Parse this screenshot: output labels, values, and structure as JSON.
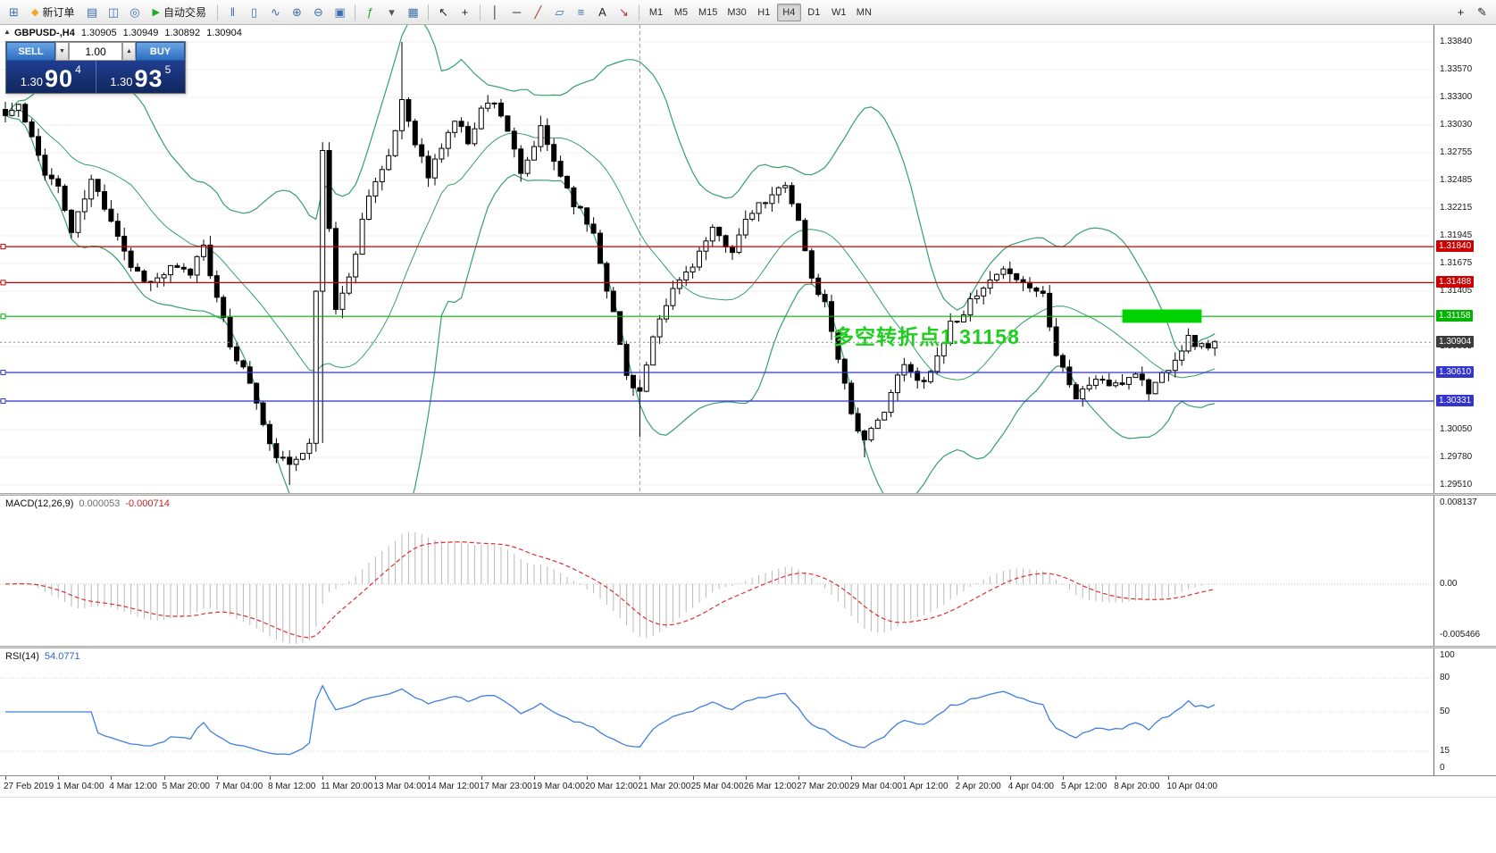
{
  "toolbar": {
    "items": [
      {
        "type": "icon",
        "name": "new-chart",
        "glyph": "⊞",
        "color": "#3f6fae"
      },
      {
        "type": "labeled",
        "name": "new-order",
        "glyph": "◆",
        "glyph_color": "#f0a821",
        "label": "新订单"
      },
      {
        "type": "icon",
        "name": "market-watch",
        "glyph": "▤",
        "color": "#3f6fae"
      },
      {
        "type": "icon",
        "name": "data-window",
        "glyph": "◫",
        "color": "#3f6fae"
      },
      {
        "type": "icon",
        "name": "navigator",
        "glyph": "◎",
        "color": "#3f6fae"
      },
      {
        "type": "labeled",
        "name": "auto-trading",
        "glyph": "▶",
        "glyph_color": "#1faa1f",
        "label": "自动交易"
      },
      {
        "type": "sep"
      },
      {
        "type": "icon",
        "name": "bar-chart-mode",
        "glyph": "‖",
        "color": "#3f6fae"
      },
      {
        "type": "icon",
        "name": "candle-chart-mode",
        "glyph": "▯",
        "color": "#3f6fae"
      },
      {
        "type": "icon",
        "name": "line-chart-mode",
        "glyph": "∿",
        "color": "#3f6fae"
      },
      {
        "type": "icon",
        "name": "zoom-in",
        "glyph": "⊕",
        "color": "#3f6fae"
      },
      {
        "type": "icon",
        "name": "zoom-out",
        "glyph": "⊖",
        "color": "#3f6fae"
      },
      {
        "type": "icon",
        "name": "auto-scroll",
        "glyph": "▣",
        "color": "#3f6fae"
      },
      {
        "type": "sep"
      },
      {
        "type": "icon",
        "name": "indicators",
        "glyph": "ƒ",
        "color": "#1faa1f"
      },
      {
        "type": "icon",
        "name": "indicators-dropdown",
        "glyph": "▾",
        "color": "#555555"
      },
      {
        "type": "icon",
        "name": "periods-dropdown",
        "glyph": "▦",
        "color": "#3f6fae"
      },
      {
        "type": "sep"
      },
      {
        "type": "icon",
        "name": "cursor",
        "glyph": "↖",
        "color": "#222222"
      },
      {
        "type": "icon",
        "name": "crosshair",
        "glyph": "+",
        "color": "#222222"
      },
      {
        "type": "sep"
      },
      {
        "type": "icon",
        "name": "vertical-line-tool",
        "glyph": "│",
        "color": "#222222"
      },
      {
        "type": "icon",
        "name": "horizontal-line-tool",
        "glyph": "─",
        "color": "#222222"
      },
      {
        "type": "icon",
        "name": "trendline-tool",
        "glyph": "╱",
        "color": "#b03030"
      },
      {
        "type": "icon",
        "name": "channel-tool",
        "glyph": "▱",
        "color": "#3f6fae"
      },
      {
        "type": "icon",
        "name": "fibonacci-tool",
        "glyph": "≡",
        "color": "#3f6fae"
      },
      {
        "type": "icon",
        "name": "text-tool",
        "glyph": "A",
        "color": "#222222"
      },
      {
        "type": "icon",
        "name": "arrows-tool",
        "glyph": "↘",
        "color": "#b03030"
      },
      {
        "type": "sep"
      },
      {
        "type": "tf-group"
      },
      {
        "type": "spacer"
      },
      {
        "type": "icon",
        "name": "add-object",
        "glyph": "+",
        "color": "#222222"
      },
      {
        "type": "icon",
        "name": "edit-object",
        "glyph": "✎",
        "color": "#222222"
      }
    ],
    "timeframes": [
      "M1",
      "M5",
      "M15",
      "M30",
      "H1",
      "H4",
      "D1",
      "W1",
      "MN"
    ],
    "active_timeframe": "H4"
  },
  "chart": {
    "title": {
      "collapse_glyph": "▲",
      "symbol_period": "GBPUSD-,H4",
      "open": "1.30905",
      "high": "1.30949",
      "low": "1.30892",
      "close": "1.30904"
    },
    "one_click": {
      "sell_label": "SELL",
      "buy_label": "BUY",
      "volume": "1.00",
      "spin_up": "▲",
      "spin_down": "▼",
      "sell_price": {
        "prefix": "1.30",
        "pips": "90",
        "sup": "4"
      },
      "buy_price": {
        "prefix": "1.30",
        "pips": "93",
        "sup": "5"
      }
    },
    "annotation": {
      "text": "多空转折点1.31158",
      "color": "#1ecf1e"
    },
    "highlight_rect": {
      "from_idx": 169,
      "to_idx": 181,
      "price_top": 1.31225,
      "price_bottom": 1.31095,
      "color": "#00d400"
    },
    "levels": [
      {
        "label": "1.31840",
        "price": 1.3184,
        "color": "#cc0000"
      },
      {
        "label": "1.31488",
        "price": 1.31488,
        "color": "#cc0000"
      },
      {
        "label": "1.31158",
        "price": 1.31158,
        "color": "#00b400"
      },
      {
        "label": "1.30610",
        "price": 1.3061,
        "color": "#3434cf"
      },
      {
        "label": "1.30331",
        "price": 1.30331,
        "color": "#3434cf"
      }
    ],
    "current_price": {
      "label": "1.30904",
      "price": 1.30904,
      "badge_color": "#3c3c3c"
    },
    "y_ticks": [
      "1.33840",
      "1.33570",
      "1.33300",
      "1.33030",
      "1.32755",
      "1.32485",
      "1.32215",
      "1.31945",
      "1.31675",
      "1.31405",
      "1.31135",
      "1.30865",
      "1.30595",
      "1.30325",
      "1.30050",
      "1.29780",
      "1.29510"
    ],
    "vertical_line_idx": 96
  },
  "chart_data": {
    "type": "candlestick",
    "symbol": "GBPUSD",
    "period": "H4",
    "candle_count": 184,
    "dx": 7.4,
    "seed": 11,
    "price_top": 1.3384,
    "price_bottom": 1.2951,
    "waypoints": [
      [
        0,
        1.3312
      ],
      [
        2,
        1.3322
      ],
      [
        4,
        1.3288
      ],
      [
        6,
        1.3258
      ],
      [
        8,
        1.3242
      ],
      [
        10,
        1.3198
      ],
      [
        13,
        1.3248
      ],
      [
        16,
        1.3212
      ],
      [
        19,
        1.3165
      ],
      [
        22,
        1.3148
      ],
      [
        25,
        1.3162
      ],
      [
        28,
        1.3158
      ],
      [
        30,
        1.3188
      ],
      [
        32,
        1.3132
      ],
      [
        34,
        1.3088
      ],
      [
        37,
        1.3052
      ],
      [
        40,
        1.2988
      ],
      [
        43,
        1.2968
      ],
      [
        46,
        1.2996
      ],
      [
        48,
        1.3278
      ],
      [
        50,
        1.3125
      ],
      [
        52,
        1.3152
      ],
      [
        55,
        1.3238
      ],
      [
        58,
        1.3268
      ],
      [
        60,
        1.3328
      ],
      [
        62,
        1.3288
      ],
      [
        64,
        1.3252
      ],
      [
        66,
        1.3282
      ],
      [
        68,
        1.3308
      ],
      [
        70,
        1.3288
      ],
      [
        72,
        1.3318
      ],
      [
        74,
        1.3328
      ],
      [
        76,
        1.3298
      ],
      [
        78,
        1.3252
      ],
      [
        81,
        1.3298
      ],
      [
        83,
        1.3268
      ],
      [
        86,
        1.3228
      ],
      [
        89,
        1.3198
      ],
      [
        92,
        1.3118
      ],
      [
        94,
        1.3058
      ],
      [
        96,
        1.3042
      ],
      [
        98,
        1.3092
      ],
      [
        101,
        1.3142
      ],
      [
        104,
        1.3168
      ],
      [
        107,
        1.3198
      ],
      [
        110,
        1.3182
      ],
      [
        113,
        1.3218
      ],
      [
        116,
        1.3232
      ],
      [
        118,
        1.3248
      ],
      [
        120,
        1.3208
      ],
      [
        122,
        1.3152
      ],
      [
        124,
        1.3128
      ],
      [
        126,
        1.3078
      ],
      [
        128,
        1.3022
      ],
      [
        130,
        1.2992
      ],
      [
        132,
        1.3012
      ],
      [
        134,
        1.3042
      ],
      [
        136,
        1.3068
      ],
      [
        138,
        1.3052
      ],
      [
        140,
        1.3062
      ],
      [
        143,
        1.3108
      ],
      [
        146,
        1.3128
      ],
      [
        149,
        1.3148
      ],
      [
        152,
        1.3162
      ],
      [
        154,
        1.3148
      ],
      [
        157,
        1.3138
      ],
      [
        159,
        1.3082
      ],
      [
        162,
        1.3036
      ],
      [
        165,
        1.3056
      ],
      [
        168,
        1.3046
      ],
      [
        171,
        1.3062
      ],
      [
        173,
        1.3042
      ],
      [
        176,
        1.3068
      ],
      [
        179,
        1.3094
      ],
      [
        181,
        1.3086
      ],
      [
        183,
        1.309
      ]
    ],
    "wick_events": [
      {
        "idx": 60,
        "high": 1.3384
      },
      {
        "idx": 81,
        "high": 1.3312
      },
      {
        "idx": 43,
        "low": 1.2951
      },
      {
        "idx": 48,
        "low": 1.2992
      },
      {
        "idx": 96,
        "low": 1.2998
      },
      {
        "idx": 130,
        "low": 1.2978
      }
    ],
    "overlays": {
      "bollinger_period": 20,
      "bollinger_deviation": 2
    }
  },
  "macd": {
    "label": "MACD(12,26,9)",
    "value_main": "0.000053",
    "value_signal": "-0.000714",
    "axis_max": "0.008137",
    "axis_zero": "0.00",
    "axis_min": "-0.005466",
    "max": 0.008137,
    "min": -0.005466,
    "fast": 12,
    "slow": 26,
    "signal": 9
  },
  "rsi": {
    "label": "RSI(14)",
    "value": "54.0771",
    "period": 14,
    "levels": [
      100,
      80,
      50,
      15,
      0
    ]
  },
  "time_axis": {
    "labels": [
      "27 Feb 2019",
      "1 Mar 04:00",
      "4 Mar 12:00",
      "5 Mar 20:00",
      "7 Mar 04:00",
      "8 Mar 12:00",
      "11 Mar 20:00",
      "13 Mar 04:00",
      "14 Mar 12:00",
      "17 Mar 23:00",
      "19 Mar 04:00",
      "20 Mar 12:00",
      "21 Mar 20:00",
      "25 Mar 04:00",
      "26 Mar 12:00",
      "27 Mar 20:00",
      "29 Mar 04:00",
      "1 Apr 12:00",
      "2 Apr 20:00",
      "4 Apr 04:00",
      "5 Apr 12:00",
      "8 Apr 20:00",
      "10 Apr 04:00"
    ]
  },
  "colors": {
    "bollinger": "#35a06a",
    "candle": "#000000",
    "macd_hist": "#b8b8b8",
    "macd_signal": "#e03030",
    "rsi_line": "#3f7fde",
    "grid": "#f0f0f0"
  }
}
